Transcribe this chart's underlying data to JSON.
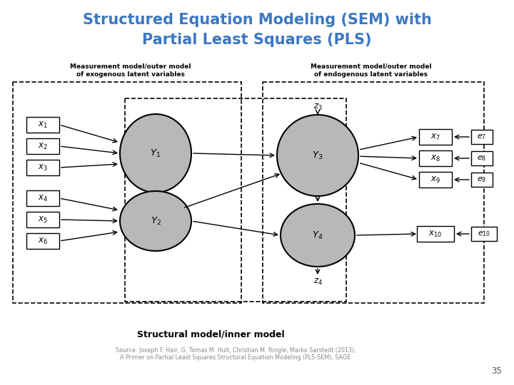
{
  "title_line1": "Structured Equation Modeling (SEM) with",
  "title_line2": "Partial Least Squares (PLS)",
  "title_color": "#3B78C3",
  "title_fontsize": 15,
  "bg_color": "#ffffff",
  "ellipse_color": "#b8b8b8",
  "page_number": "35",
  "source_text": "Source: Joseph F. Hair, G. Tomas M. Hult, Christian M. Ringle, Marko Sarstedt (2013),\nA Primer on Partial Least Squares Structural Equation Modeling (PLS-SEM), SAGE"
}
